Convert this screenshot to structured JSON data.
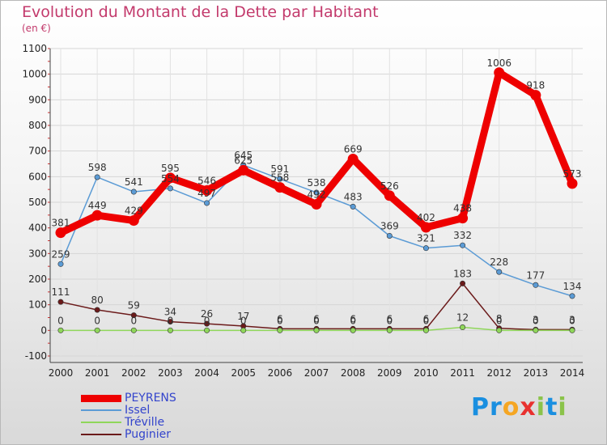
{
  "header": {
    "title": "Evolution du Montant de la Dette par Habitant",
    "unit": "(en €)"
  },
  "logo": {
    "letters": [
      "P",
      "r",
      "o",
      "x",
      "i",
      "t",
      "i"
    ],
    "colors": [
      "#1a8fe0",
      "#1a8fe0",
      "#f5a623",
      "#e8312f",
      "#8bc34a",
      "#1a8fe0",
      "#8bc34a"
    ]
  },
  "chart_data": {
    "type": "line",
    "title": "Evolution du Montant de la Dette par Habitant",
    "ylabel": "(en €)",
    "xlabel": "",
    "x": [
      "2000",
      "2001",
      "2002",
      "2003",
      "2004",
      "2005",
      "2006",
      "2007",
      "2008",
      "2009",
      "2010",
      "2011",
      "2012",
      "2013",
      "2014"
    ],
    "ylim": [
      -100,
      1100
    ],
    "yticks": [
      "-100",
      "0",
      "100",
      "200",
      "300",
      "400",
      "500",
      "600",
      "700",
      "800",
      "900",
      "1000",
      "1100"
    ],
    "grid": true,
    "legend_position": "bottom-left",
    "series": [
      {
        "name": "Puginier",
        "color": "#6b1a1a",
        "values": [
          111,
          80,
          59,
          34,
          26,
          17,
          6,
          6,
          6,
          6,
          6,
          183,
          8,
          3,
          3
        ],
        "labels": [
          "111",
          "80",
          "59",
          "34",
          "26",
          "17",
          "6",
          "6",
          "6",
          "6",
          "6",
          "183",
          "8",
          "3",
          "3"
        ]
      },
      {
        "name": "Tréville",
        "color": "#8fd65a",
        "values": [
          0,
          0,
          0,
          0,
          0,
          0,
          0,
          0,
          0,
          0,
          0,
          12,
          0,
          0,
          0
        ],
        "labels": [
          "0",
          "0",
          "0",
          "0",
          "0",
          "0",
          "0",
          "0",
          "0",
          "0",
          "0",
          "12",
          "0",
          "0",
          "0"
        ]
      },
      {
        "name": "Issel",
        "color": "#5b9bd5",
        "values": [
          259,
          598,
          541,
          554,
          497,
          645,
          591,
          538,
          483,
          369,
          321,
          332,
          228,
          177,
          134
        ],
        "labels": [
          "259",
          "598",
          "541",
          "554",
          "497",
          "645",
          "591",
          "538",
          "483",
          "369",
          "321",
          "332",
          "228",
          "177",
          "134"
        ]
      },
      {
        "name": "PEYRENS",
        "color": "#ee0000",
        "values": [
          381,
          449,
          429,
          595,
          546,
          625,
          558,
          492,
          669,
          526,
          402,
          438,
          1006,
          918,
          573
        ],
        "labels": [
          "381",
          "449",
          "429",
          "595",
          "546",
          "625",
          "558",
          "492",
          "669",
          "526",
          "402",
          "438",
          "1006",
          "918",
          "573"
        ]
      }
    ]
  },
  "legend": [
    {
      "name": "PEYRENS",
      "color": "#ee0000"
    },
    {
      "name": "Issel",
      "color": "#5b9bd5"
    },
    {
      "name": "Tréville",
      "color": "#8fd65a"
    },
    {
      "name": "Puginier",
      "color": "#6b1a1a"
    }
  ]
}
